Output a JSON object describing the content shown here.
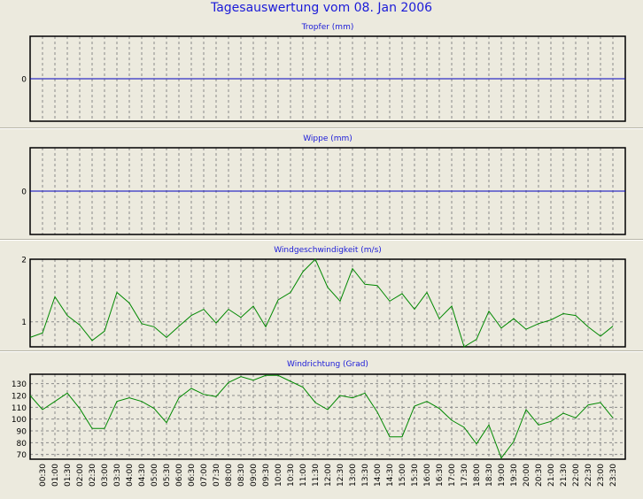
{
  "page": {
    "title": "Tagesauswertung vom 08. Jan 2006"
  },
  "chart_data": [
    {
      "type": "line",
      "title": "Tropfer (mm)",
      "yticks": [
        0
      ],
      "ylim": [
        -1,
        1
      ],
      "series": [
        {
          "color": "#0000c0",
          "values": [
            0,
            0
          ]
        }
      ],
      "grid": true
    },
    {
      "type": "line",
      "title": "Wippe (mm)",
      "yticks": [
        0
      ],
      "ylim": [
        -1,
        1
      ],
      "series": [
        {
          "color": "#0000c0",
          "values": [
            0,
            0
          ]
        }
      ],
      "grid": true
    },
    {
      "type": "line",
      "title": "Windgeschwindigkeit (m/s)",
      "yticks": [
        1,
        2
      ],
      "ylim": [
        0.6,
        2.0
      ],
      "series": [
        {
          "color": "#008800",
          "values": [
            0.75,
            0.82,
            1.4,
            1.1,
            0.95,
            0.7,
            0.85,
            1.47,
            1.3,
            0.97,
            0.92,
            0.75,
            0.93,
            1.1,
            1.2,
            0.98,
            1.2,
            1.07,
            1.25,
            0.92,
            1.35,
            1.47,
            1.8,
            2.0,
            1.55,
            1.33,
            1.85,
            1.6,
            1.58,
            1.33,
            1.45,
            1.2,
            1.47,
            1.05,
            1.25,
            0.6,
            0.72,
            1.17,
            0.9,
            1.05,
            0.88,
            0.97,
            1.03,
            1.13,
            1.1,
            0.92,
            0.77,
            0.93
          ]
        }
      ],
      "grid": true
    },
    {
      "type": "line",
      "title": "Windrichtung (Grad)",
      "yticks": [
        70,
        80,
        90,
        100,
        110,
        120,
        130
      ],
      "ylim": [
        66,
        138
      ],
      "series": [
        {
          "color": "#008800",
          "values": [
            120,
            108,
            115,
            122,
            109,
            92,
            92,
            115,
            118,
            115,
            109,
            97,
            118,
            126,
            121,
            119,
            131,
            136,
            133,
            137,
            137,
            132,
            127,
            114,
            108,
            120,
            118,
            122,
            106,
            85,
            85,
            111,
            115,
            109,
            99,
            93,
            79,
            95,
            67,
            81,
            108,
            95,
            98,
            105,
            101,
            112,
            114,
            101
          ]
        }
      ],
      "grid": true,
      "xlabels": [
        "00:30",
        "01:00",
        "01:30",
        "02:00",
        "02:30",
        "03:00",
        "03:30",
        "04:00",
        "04:30",
        "05:00",
        "05:30",
        "06:00",
        "06:30",
        "07:00",
        "07:30",
        "08:00",
        "08:30",
        "09:00",
        "09:30",
        "10:00",
        "10:30",
        "11:00",
        "11:30",
        "12:00",
        "12:30",
        "13:00",
        "13:30",
        "14:00",
        "14:30",
        "15:00",
        "15:30",
        "16:00",
        "16:30",
        "17:00",
        "17:30",
        "18:00",
        "18:30",
        "19:00",
        "19:30",
        "20:00",
        "20:30",
        "21:00",
        "21:30",
        "22:00",
        "22:30",
        "23:00",
        "23:30"
      ]
    }
  ]
}
